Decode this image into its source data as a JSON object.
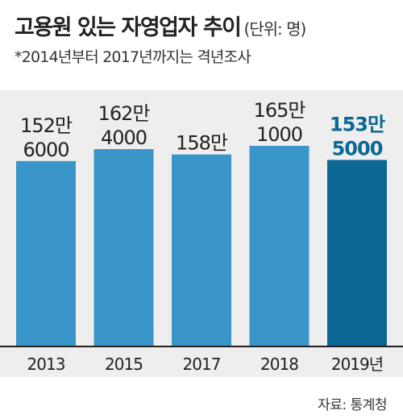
{
  "title": "고용원 있는 자영업자 추이",
  "unit": "(단위: 명)",
  "note": "*2014년부터 2017년까지는 격년조사",
  "source": "자료: 통계청",
  "colors": {
    "bar": "#3a96c8",
    "bar_highlight": "#0b6894",
    "label": "#222222",
    "label_highlight": "#0b6894",
    "background_panel": "#eeeeee",
    "axis": "#222222"
  },
  "chart_data": {
    "type": "bar",
    "title": "고용원 있는 자영업자 추이",
    "categories": [
      "2013",
      "2015",
      "2017",
      "2018",
      "2019년"
    ],
    "values": [
      1526000,
      1624000,
      1580000,
      1651000,
      1535000
    ],
    "value_labels": [
      [
        "152만",
        "6000"
      ],
      [
        "162만",
        "4000"
      ],
      [
        "158만"
      ],
      [
        "165만",
        "1000"
      ],
      [
        "153만",
        "5000"
      ]
    ],
    "highlight_index": 4,
    "grid": false,
    "legend": "none"
  }
}
